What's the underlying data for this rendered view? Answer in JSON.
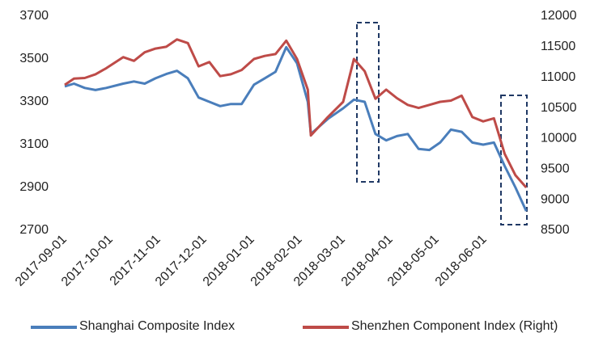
{
  "chart_data": {
    "type": "line",
    "x": [
      "2017-09-01",
      "2017-09-07",
      "2017-09-14",
      "2017-09-21",
      "2017-09-28",
      "2017-10-09",
      "2017-10-16",
      "2017-10-23",
      "2017-10-30",
      "2017-11-06",
      "2017-11-13",
      "2017-11-20",
      "2017-11-27",
      "2017-12-04",
      "2017-12-11",
      "2017-12-18",
      "2017-12-25",
      "2018-01-02",
      "2018-01-09",
      "2018-01-16",
      "2018-01-23",
      "2018-01-30",
      "2018-02-06",
      "2018-02-08",
      "2018-02-19",
      "2018-03-01",
      "2018-03-08",
      "2018-03-15",
      "2018-03-22",
      "2018-03-29",
      "2018-04-05",
      "2018-04-12",
      "2018-04-19",
      "2018-04-26",
      "2018-05-03",
      "2018-05-10",
      "2018-05-17",
      "2018-05-24",
      "2018-05-31",
      "2018-06-07",
      "2018-06-14",
      "2018-06-21",
      "2018-06-28"
    ],
    "series": [
      {
        "name": "Shanghai Composite Index",
        "color": "#4a7ebb",
        "values": [
          3372,
          3385,
          3365,
          3355,
          3365,
          3385,
          3395,
          3385,
          3410,
          3430,
          3445,
          3410,
          3320,
          3300,
          3280,
          3290,
          3290,
          3380,
          3410,
          3440,
          3555,
          3480,
          3300,
          3150,
          3220,
          3270,
          3310,
          3300,
          3150,
          3120,
          3140,
          3150,
          3080,
          3075,
          3110,
          3170,
          3160,
          3110,
          3100,
          3110,
          3000,
          2900,
          2790
        ]
      },
      {
        "name": "Shenzhen Component Index (Right)",
        "color": "#be4b48",
        "axis": "y2",
        "values": [
          10877,
          10980,
          10990,
          11050,
          11150,
          11330,
          11270,
          11410,
          11470,
          11500,
          11620,
          11560,
          11180,
          11250,
          11020,
          11050,
          11120,
          11300,
          11350,
          11380,
          11600,
          11300,
          10800,
          10050,
          10350,
          10600,
          11300,
          11100,
          10650,
          10800,
          10660,
          10550,
          10500,
          10550,
          10600,
          10620,
          10700,
          10350,
          10280,
          10330,
          9750,
          9400,
          9200
        ]
      }
    ],
    "xlim": [
      "2017-09-01",
      "2018-06-30"
    ],
    "xticks": [
      "2017-09-01",
      "2017-10-01",
      "2017-11-01",
      "2017-12-01",
      "2018-01-01",
      "2018-02-01",
      "2018-03-01",
      "2018-04-01",
      "2018-05-01",
      "2018-06-01"
    ],
    "ylim": [
      2700,
      3700
    ],
    "yticks": [
      2700,
      2900,
      3100,
      3300,
      3500,
      3700
    ],
    "y2lim": [
      8500,
      12000
    ],
    "y2ticks": [
      8500,
      9000,
      9500,
      10000,
      10500,
      11000,
      11500,
      12000
    ],
    "grid": false,
    "legend": "bottom"
  }
}
